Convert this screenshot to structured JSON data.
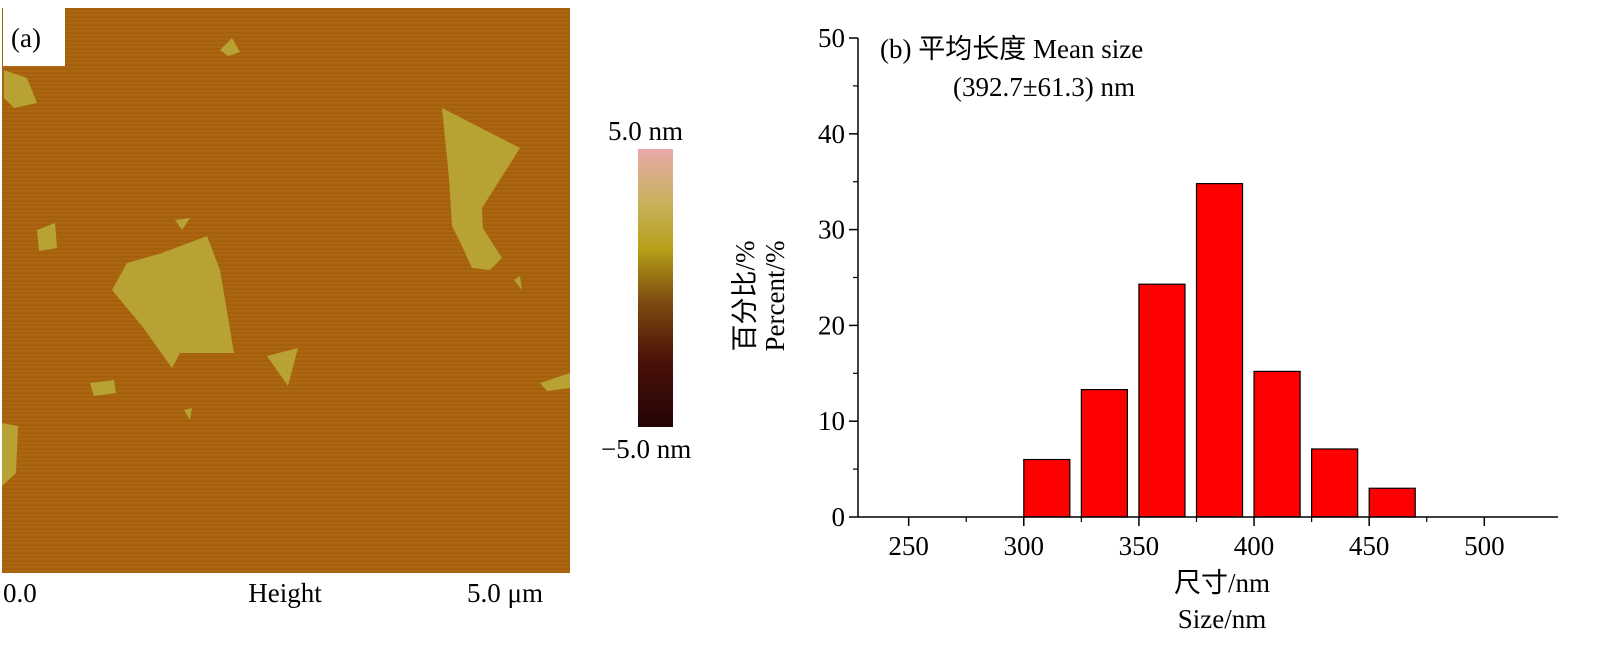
{
  "panel_a": {
    "label": "(a)",
    "x_min": "0.0",
    "x_name": "Height",
    "x_max": "5.0 μm",
    "scale_max": "5.0 nm",
    "scale_min": "−5.0 nm",
    "colors": {
      "background": "#a8620e",
      "flake": "#b8a233"
    }
  },
  "chart_data": {
    "type": "bar",
    "title": "(b) 平均长度 Mean size",
    "subtitle": "(392.7±61.3) nm",
    "xlabel": "尺寸/nm",
    "xlabel_en": "Size/nm",
    "ylabel": "百分比/%",
    "ylabel_en": "Percent/%",
    "x": [
      310,
      335,
      360,
      385,
      410,
      435,
      460
    ],
    "values": [
      6,
      13.3,
      24.3,
      34.8,
      15.2,
      7.1,
      3
    ],
    "bar_width": 20,
    "xlim": [
      228,
      532
    ],
    "ylim": [
      0,
      50
    ],
    "xticks": [
      "250",
      "300",
      "350",
      "400",
      "450",
      "500"
    ],
    "xtick_values": [
      250,
      300,
      350,
      400,
      450,
      500
    ],
    "yticks": [
      "0",
      "10",
      "20",
      "30",
      "40",
      "50"
    ],
    "ytick_values": [
      0,
      10,
      20,
      30,
      40,
      50
    ],
    "bar_color": "#ff0000",
    "grid": false
  }
}
